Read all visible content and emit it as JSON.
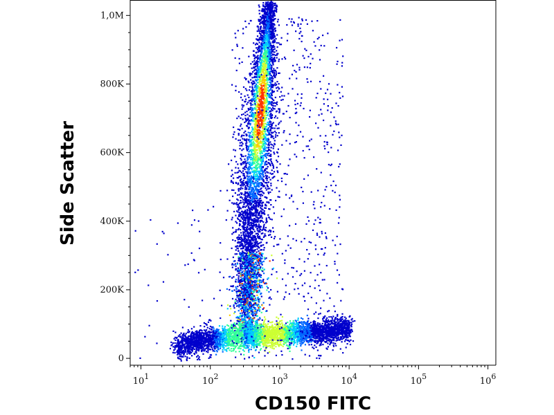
{
  "chart_data": {
    "type": "scatter",
    "xlabel": "CD150 FITC",
    "ylabel": "Side Scatter",
    "x_scale": "log",
    "x_range": [
      7,
      1300000
    ],
    "y_range": [
      -20000,
      1045000
    ],
    "x_ticks": [
      {
        "value": 10,
        "base": "10",
        "exp": "1"
      },
      {
        "value": 100,
        "base": "10",
        "exp": "2"
      },
      {
        "value": 1000,
        "base": "10",
        "exp": "3"
      },
      {
        "value": 10000,
        "base": "10",
        "exp": "4"
      },
      {
        "value": 100000,
        "base": "10",
        "exp": "5"
      },
      {
        "value": 1000000,
        "base": "10",
        "exp": "6"
      }
    ],
    "y_ticks": [
      {
        "value": 0,
        "label": "0"
      },
      {
        "value": 200000,
        "label": "200K"
      },
      {
        "value": 400000,
        "label": "400K"
      },
      {
        "value": 600000,
        "label": "600K"
      },
      {
        "value": 800000,
        "label": "800K"
      },
      {
        "value": 1000000,
        "label": "1,0M"
      }
    ],
    "grid": false,
    "density_colormap": [
      "#0000cc",
      "#0066ff",
      "#00ccff",
      "#33ff99",
      "#ccff33",
      "#ffcc00",
      "#ff3300"
    ],
    "populations": [
      {
        "x_center": 550,
        "y_center": 620000,
        "peak_density": "high",
        "shape": "elongated vertical cluster"
      },
      {
        "x_center": 900,
        "y_center": 70000,
        "peak_density": "medium",
        "shape": "horizontal band"
      },
      {
        "x_center": 150,
        "y_center": 60000,
        "peak_density": "medium",
        "shape": "horizontal band"
      }
    ]
  }
}
